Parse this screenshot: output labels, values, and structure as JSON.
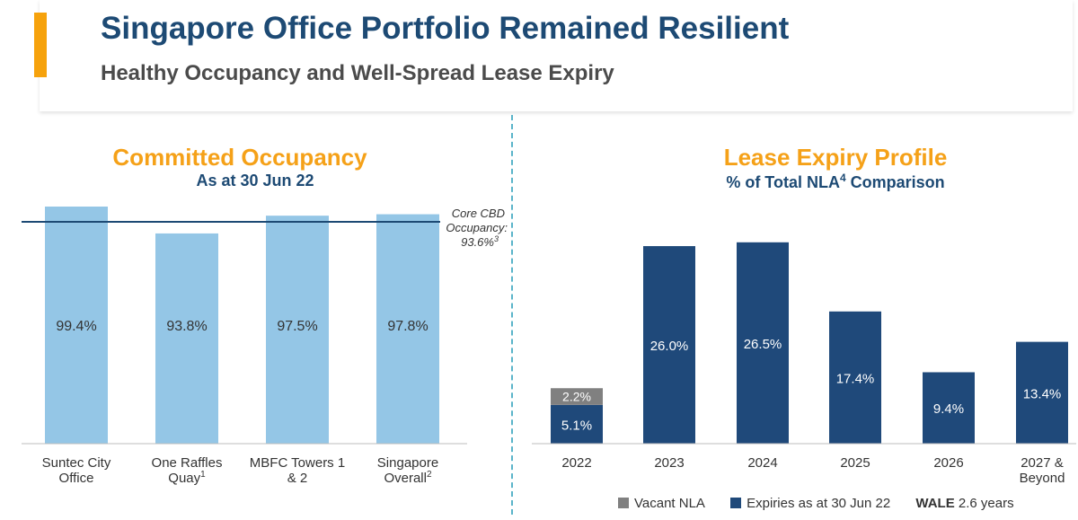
{
  "header": {
    "title": "Singapore Office Portfolio Remained Resilient",
    "subtitle": "Healthy Occupancy and Well-Spread Lease Expiry"
  },
  "left_panel": {
    "title": "Committed Occupancy",
    "subtitle": "As at 30 Jun 22"
  },
  "right_panel": {
    "title": "Lease Expiry Profile",
    "subtitle": "% of Total NLA",
    "subtitle_sup": "4",
    "subtitle_tail": " Comparison"
  },
  "legend": {
    "vacant": "Vacant NLA",
    "expiries": "Expiries as at 30 Jun 22",
    "wale_label": "WALE",
    "wale_value": "2.6 years"
  },
  "colors": {
    "accent": "#f6a20c",
    "navy": "#1d4a74",
    "light_bar": "#94c6e6",
    "dark_bar": "#1f497a",
    "vacant": "#808080",
    "teal_divider": "#5ab4c9"
  },
  "chart_data": [
    {
      "type": "bar",
      "title": "Committed Occupancy",
      "subtitle": "As at 30 Jun 22",
      "categories": [
        {
          "line1": "Suntec City",
          "line2": "Office",
          "sup": ""
        },
        {
          "line1": "One Raffles",
          "line2": "Quay",
          "sup": "1"
        },
        {
          "line1": "MBFC Towers 1",
          "line2": "& 2",
          "sup": ""
        },
        {
          "line1": "Singapore",
          "line2": "Overall",
          "sup": "2"
        }
      ],
      "values": [
        99.4,
        93.8,
        97.5,
        97.8
      ],
      "labels": [
        "99.4%",
        "93.8%",
        "97.5%",
        "97.8%"
      ],
      "reference_line": {
        "value": 93.6,
        "label_lines": [
          "Core CBD",
          "Occupancy:",
          "93.6%"
        ],
        "label_sup": "3"
      },
      "ylim": [
        0,
        100
      ]
    },
    {
      "type": "bar",
      "stacked": true,
      "title": "Lease Expiry Profile",
      "categories": [
        {
          "line1": "2022",
          "line2": ""
        },
        {
          "line1": "2023",
          "line2": ""
        },
        {
          "line1": "2024",
          "line2": ""
        },
        {
          "line1": "2025",
          "line2": ""
        },
        {
          "line1": "2026",
          "line2": ""
        },
        {
          "line1": "2027 &",
          "line2": "Beyond"
        }
      ],
      "series": [
        {
          "name": "Expiries as at 30 Jun 22",
          "values": [
            5.1,
            26.0,
            26.5,
            17.4,
            9.4,
            13.4
          ],
          "labels": [
            "5.1%",
            "26.0%",
            "26.5%",
            "17.4%",
            "9.4%",
            "13.4%"
          ]
        },
        {
          "name": "Vacant NLA",
          "values": [
            2.2,
            0,
            0,
            0,
            0,
            0
          ],
          "labels": [
            "2.2%",
            "",
            "",
            "",
            "",
            ""
          ]
        }
      ],
      "ylim": [
        0,
        28
      ]
    }
  ]
}
